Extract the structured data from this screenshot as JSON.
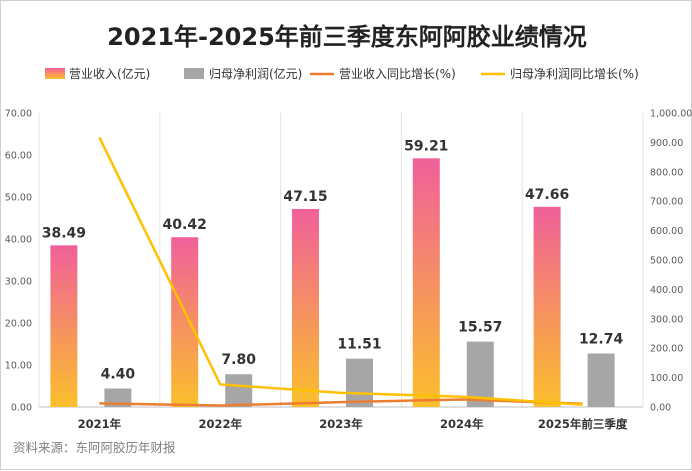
{
  "chart_data": {
    "type": "bar",
    "title": "2021年-2025年前三季度东阿阿胶业绩情况",
    "categories": [
      "2021年",
      "2022年",
      "2023年",
      "2024年",
      "2025年前三季度"
    ],
    "series": [
      {
        "name": "营业收入(亿元)",
        "kind": "bar",
        "axis": "left",
        "values": [
          38.49,
          40.42,
          47.15,
          59.21,
          47.66
        ],
        "labels": [
          "38.49",
          "40.42",
          "47.15",
          "59.21",
          "47.66"
        ]
      },
      {
        "name": "归母净利润(亿元)",
        "kind": "bar",
        "axis": "left",
        "values": [
          4.4,
          7.8,
          11.51,
          15.57,
          12.74
        ],
        "labels": [
          "4.40",
          "7.80",
          "11.51",
          "15.57",
          "12.74"
        ]
      },
      {
        "name": "营业收入同比增长(%)",
        "kind": "line",
        "axis": "right",
        "values": [
          12.5,
          5.0,
          16.7,
          25.6,
          11.0
        ]
      },
      {
        "name": "归母净利润同比增长(%)",
        "kind": "line",
        "axis": "right",
        "values": [
          917,
          77,
          48,
          35,
          8
        ]
      }
    ],
    "y_left": {
      "min": 0,
      "max": 70,
      "step": 10,
      "tick_labels": [
        "0.00",
        "10.00",
        "20.00",
        "30.00",
        "40.00",
        "50.00",
        "60.00",
        "70.00"
      ]
    },
    "y_right": {
      "min": 0,
      "max": 1000,
      "step": 100,
      "tick_labels": [
        "0.00",
        "100.00",
        "200.00",
        "300.00",
        "400.00",
        "500.00",
        "600.00",
        "700.00",
        "800.00",
        "900.00",
        "1,000.00"
      ]
    },
    "legend": "top",
    "grid": "vertical"
  },
  "source": "资料来源：东阿阿胶历年财报",
  "colors": {
    "revenue_top": "#f0609a",
    "revenue_bottom": "#fbbf2c",
    "profit_bar": "#a6a6a6",
    "revenue_line": "#ed7d31",
    "profit_line": "#ffc000",
    "grid": "#e3e3e3"
  }
}
